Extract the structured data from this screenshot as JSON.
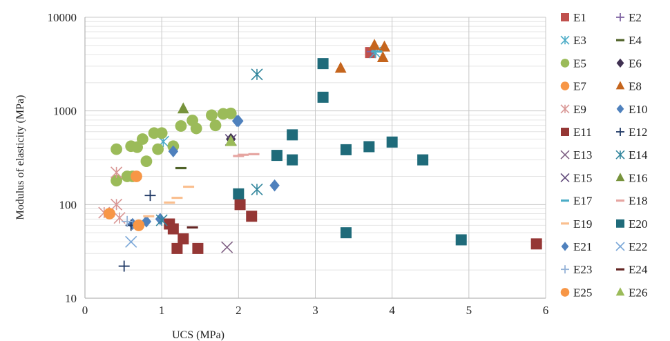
{
  "chart_data": {
    "type": "scatter",
    "xlabel": "UCS (MPa)",
    "ylabel": "Modulus of elasticity (MPa)",
    "xlim": [
      0,
      6
    ],
    "ylim": [
      10,
      10000
    ],
    "yscale": "log",
    "grid": true,
    "legend_position": "right",
    "x_ticks": [
      0,
      1,
      2,
      3,
      4,
      5,
      6
    ],
    "y_ticks": [
      10,
      100,
      1000,
      10000
    ],
    "series": [
      {
        "name": "E1",
        "color": "#c0504d",
        "marker": "square",
        "points": [
          [
            3.72,
            4200
          ]
        ]
      },
      {
        "name": "E2",
        "color": "#8064a2",
        "marker": "plus",
        "points": [
          [
            3.74,
            4300
          ]
        ]
      },
      {
        "name": "E3",
        "color": "#4bacc6",
        "marker": "asterisk",
        "points": [
          [
            1.02,
            470
          ],
          [
            3.78,
            4200
          ]
        ]
      },
      {
        "name": "E4",
        "color": "#4f6228",
        "marker": "dash",
        "points": [
          [
            1.25,
            245
          ]
        ]
      },
      {
        "name": "E5",
        "color": "#9bbb59",
        "marker": "circle",
        "points": [
          [
            0.41,
            390
          ],
          [
            0.41,
            180
          ],
          [
            0.55,
            200
          ],
          [
            0.6,
            420
          ],
          [
            0.68,
            410
          ],
          [
            0.75,
            500
          ],
          [
            0.8,
            290
          ],
          [
            0.9,
            580
          ],
          [
            0.95,
            390
          ],
          [
            1.0,
            580
          ],
          [
            1.15,
            420
          ],
          [
            1.25,
            690
          ],
          [
            1.4,
            790
          ],
          [
            1.45,
            650
          ],
          [
            1.65,
            900
          ],
          [
            1.7,
            700
          ],
          [
            1.8,
            930
          ],
          [
            1.9,
            940
          ],
          [
            0.62,
            200
          ]
        ]
      },
      {
        "name": "E6",
        "color": "#403152",
        "marker": "diamond",
        "points": [
          [
            1.9,
            500
          ]
        ]
      },
      {
        "name": "E7",
        "color": "#f79646",
        "marker": "circle",
        "points": [
          [
            0.67,
            200
          ]
        ]
      },
      {
        "name": "E8",
        "color": "#c5651d",
        "marker": "triangle",
        "points": [
          [
            3.33,
            2850
          ],
          [
            3.77,
            5000
          ],
          [
            3.88,
            3700
          ],
          [
            3.9,
            4800
          ]
        ]
      },
      {
        "name": "E9",
        "color": "#d99694",
        "marker": "asterisk",
        "points": [
          [
            0.25,
            82
          ],
          [
            0.41,
            220
          ],
          [
            0.41,
            100
          ],
          [
            0.45,
            72
          ]
        ]
      },
      {
        "name": "E10",
        "color": "#4f81bd",
        "marker": "diamond",
        "points": [
          [
            0.62,
            62
          ],
          [
            0.8,
            66
          ],
          [
            0.98,
            70
          ],
          [
            1.15,
            370
          ],
          [
            2.0,
            780
          ],
          [
            2.47,
            160
          ]
        ]
      },
      {
        "name": "E11",
        "color": "#953735",
        "marker": "square",
        "points": [
          [
            1.1,
            62
          ],
          [
            1.15,
            55
          ],
          [
            1.2,
            34
          ],
          [
            1.28,
            43
          ],
          [
            1.47,
            34
          ],
          [
            2.02,
            100
          ],
          [
            2.17,
            75
          ],
          [
            5.88,
            38
          ]
        ]
      },
      {
        "name": "E12",
        "color": "#1f3864",
        "marker": "plus",
        "points": [
          [
            0.51,
            22
          ],
          [
            0.6,
            60
          ],
          [
            0.85,
            125
          ]
        ]
      },
      {
        "name": "E13",
        "color": "#7f6084",
        "marker": "cross",
        "points": [
          [
            1.85,
            35
          ]
        ]
      },
      {
        "name": "E14",
        "color": "#31859c",
        "marker": "asterisk",
        "points": [
          [
            1.0,
            68
          ],
          [
            2.24,
            145
          ],
          [
            2.24,
            2450
          ]
        ]
      },
      {
        "name": "E15",
        "color": "#60497a",
        "marker": "cross",
        "points": [
          [
            1.9,
            490
          ]
        ]
      },
      {
        "name": "E16",
        "color": "#77933c",
        "marker": "triangle",
        "points": [
          [
            1.28,
            1050
          ]
        ]
      },
      {
        "name": "E17",
        "color": "#4bacc6",
        "marker": "dash",
        "points": [
          [
            3.8,
            4300
          ]
        ]
      },
      {
        "name": "E18",
        "color": "#e6a5a1",
        "marker": "dash",
        "points": [
          [
            2.0,
            330
          ],
          [
            2.06,
            340
          ],
          [
            2.2,
            345
          ]
        ]
      },
      {
        "name": "E19",
        "color": "#fabf8f",
        "marker": "dash",
        "points": [
          [
            0.83,
            75
          ],
          [
            1.1,
            105
          ],
          [
            1.2,
            118
          ],
          [
            1.35,
            155
          ]
        ]
      },
      {
        "name": "E20",
        "color": "#1f6b7a",
        "marker": "square",
        "points": [
          [
            2.0,
            130
          ],
          [
            2.5,
            335
          ],
          [
            2.7,
            300
          ],
          [
            2.7,
            555
          ],
          [
            3.1,
            3200
          ],
          [
            3.1,
            1400
          ],
          [
            3.4,
            50
          ],
          [
            3.4,
            385
          ],
          [
            3.7,
            415
          ],
          [
            4.0,
            465
          ],
          [
            4.4,
            300
          ],
          [
            4.9,
            42
          ]
        ]
      },
      {
        "name": "E21",
        "color": "#4f81bd",
        "marker": "diamond",
        "points": [
          [
            1.98,
            780
          ]
        ]
      },
      {
        "name": "E22",
        "color": "#7aa7d8",
        "marker": "cross",
        "points": [
          [
            0.6,
            40
          ]
        ]
      },
      {
        "name": "E23",
        "color": "#95b3d7",
        "marker": "plus",
        "points": [
          [
            0.55,
            66
          ]
        ]
      },
      {
        "name": "E24",
        "color": "#632523",
        "marker": "dash",
        "points": [
          [
            1.4,
            57
          ]
        ]
      },
      {
        "name": "E25",
        "color": "#f79646",
        "marker": "circle",
        "points": [
          [
            0.32,
            80
          ],
          [
            0.7,
            60
          ]
        ]
      },
      {
        "name": "E26",
        "color": "#9bbb59",
        "marker": "triangle",
        "points": [
          [
            1.9,
            470
          ]
        ]
      }
    ]
  }
}
